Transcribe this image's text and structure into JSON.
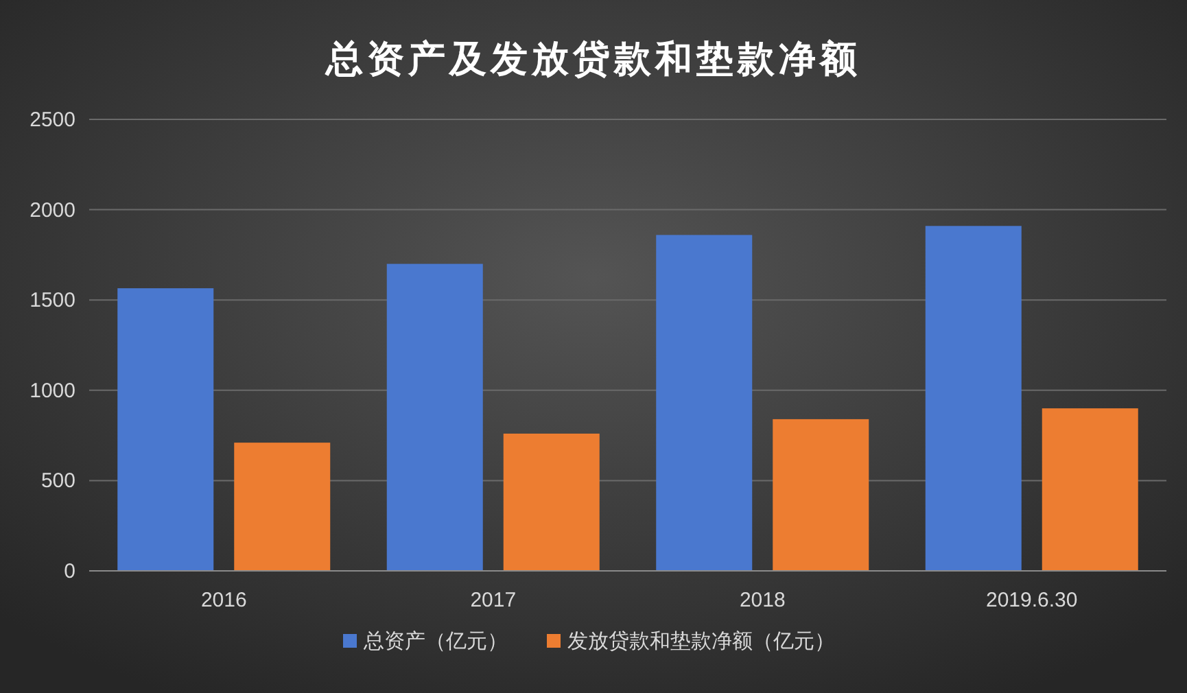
{
  "chart_data": {
    "type": "bar",
    "title": "总资产及发放贷款和垫款净额",
    "categories": [
      "2016",
      "2017",
      "2018",
      "2019.6.30"
    ],
    "series": [
      {
        "name": "总资产（亿元）",
        "color": "#4a78cf",
        "values": [
          1565,
          1700,
          1860,
          1910
        ]
      },
      {
        "name": "发放贷款和垫款净额（亿元）",
        "color": "#ed7d31",
        "values": [
          710,
          760,
          840,
          900
        ]
      }
    ],
    "ylim": [
      0,
      2500
    ],
    "yticks": [
      0,
      500,
      1000,
      1500,
      2000,
      2500
    ],
    "grid": "y",
    "legend": "bottom"
  }
}
